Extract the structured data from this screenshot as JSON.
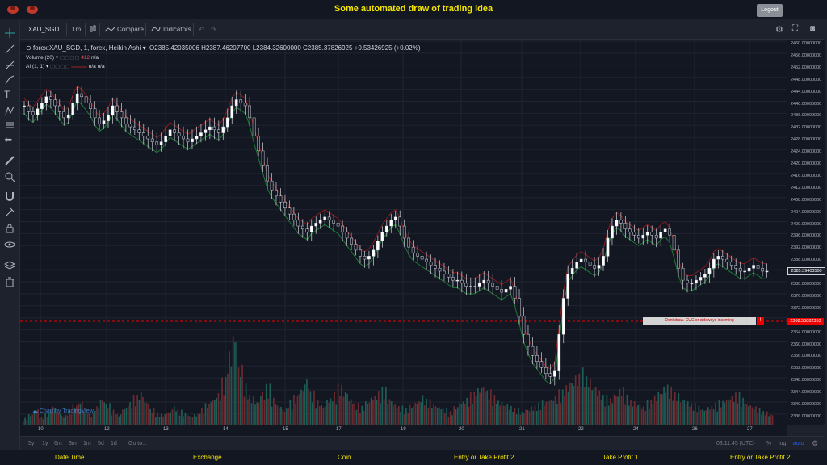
{
  "header": {
    "title": "Some automated draw of trading idea",
    "logout_label": "Logout"
  },
  "toolbar": {
    "symbol": "XAU_SGD",
    "interval": "1m",
    "compare_label": "Compare",
    "indicators_label": "Indicators",
    "undo_icon": "undo-icon",
    "settings_icon": "gear-icon",
    "fullscreen_icon": "fullscreen-icon",
    "snapshot_icon": "camera-icon"
  },
  "legend": {
    "title": "forex:XAU_SGD, 1, forex, Heikin Ashi",
    "open": "O2385.42035006",
    "high": "H2387.46207700",
    "low": "L2384.32600000",
    "close": "C2385.37826925",
    "change": "+0.53426925 (+0.02%)",
    "volume_label": "Volume (20)",
    "volume_value": "412",
    "volume_na": "n/a",
    "ai_label": "AI (1, 1)",
    "ai_na1": "n/a",
    "ai_na2": "n/a"
  },
  "price_axis": {
    "labels": [
      "2460.00000000",
      "2456.00000000",
      "2452.00000000",
      "2448.00000000",
      "2444.00000000",
      "2440.00000000",
      "2436.00000000",
      "2432.00000000",
      "2428.00000000",
      "2424.00000000",
      "2420.00000000",
      "2416.00000000",
      "2412.00000000",
      "2408.00000000",
      "2404.00000000",
      "2400.00000000",
      "2396.00000000",
      "2392.00000000",
      "2388.00000000",
      "2384.00000000",
      "2380.00000000",
      "2376.00000000",
      "2372.00000000",
      "2368.00000000",
      "2364.00000000",
      "2360.00000000",
      "2356.00000000",
      "2352.00000000",
      "2348.00000000",
      "2344.00000000",
      "2340.00000000",
      "2336.00000000"
    ],
    "current_price": "2385.39403500",
    "alert_price": "2368.55882353"
  },
  "time_axis": {
    "labels": [
      "10",
      "12",
      "13",
      "14",
      "15",
      "17",
      "19",
      "20",
      "21",
      "22",
      "24",
      "26",
      "27"
    ]
  },
  "alert": {
    "text": "Dont draw. CUC or sideways incoming",
    "button": "!"
  },
  "range_bar": {
    "ranges": [
      "5y",
      "1y",
      "6m",
      "3m",
      "1m",
      "5d",
      "1d"
    ],
    "goto": "Go to...",
    "clock": "03:11:45 (UTC)",
    "percent": "%",
    "log": "log",
    "auto": "auto"
  },
  "watermark": "Chart by TradingView",
  "footer": {
    "items": [
      "Date Time",
      "Exchange",
      "Coin",
      "Entry or Take Profit 2",
      "Take Profit 1",
      "Entry or Take Profit 2"
    ]
  },
  "colors": {
    "up": "#26a69a",
    "down": "#ef5350",
    "title": "#f5e600",
    "alert": "#e00000"
  },
  "chart_data": {
    "type": "candlestick",
    "series_note": "",
    "ylim": [
      2334,
      2462
    ],
    "x_ticks": [
      "10",
      "12",
      "13",
      "14",
      "15",
      "17",
      "19",
      "20",
      "21",
      "22",
      "24",
      "26",
      "27"
    ],
    "close_path": [
      2440,
      2438,
      2437,
      2439,
      2441,
      2443,
      2442,
      2440,
      2438,
      2436,
      2437,
      2441,
      2444,
      2443,
      2441,
      2439,
      2436,
      2434,
      2435,
      2437,
      2440,
      2438,
      2436,
      2434,
      2433,
      2432,
      2431,
      2430,
      2429,
      2428,
      2427,
      2428,
      2430,
      2432,
      2431,
      2430,
      2429,
      2428,
      2429,
      2430,
      2431,
      2432,
      2433,
      2432,
      2431,
      2433,
      2436,
      2440,
      2442,
      2441,
      2440,
      2436,
      2430,
      2425,
      2420,
      2415,
      2412,
      2410,
      2408,
      2406,
      2404,
      2402,
      2400,
      2399,
      2398,
      2400,
      2401,
      2402,
      2403,
      2402,
      2401,
      2400,
      2398,
      2396,
      2394,
      2392,
      2390,
      2389,
      2390,
      2392,
      2395,
      2398,
      2400,
      2402,
      2403,
      2400,
      2396,
      2393,
      2391,
      2390,
      2389,
      2388,
      2387,
      2386,
      2385,
      2384,
      2383,
      2382,
      2382,
      2381,
      2380,
      2380,
      2380,
      2381,
      2382,
      2381,
      2380,
      2379,
      2378,
      2379,
      2380,
      2376,
      2370,
      2364,
      2360,
      2357,
      2355,
      2353,
      2351,
      2350,
      2352,
      2364,
      2376,
      2384,
      2386,
      2388,
      2389,
      2388,
      2387,
      2386,
      2387,
      2390,
      2396,
      2400,
      2402,
      2401,
      2399,
      2398,
      2397,
      2396,
      2397,
      2398,
      2397,
      2396,
      2398,
      2399,
      2397,
      2392,
      2386,
      2382,
      2381,
      2381,
      2382,
      2383,
      2384,
      2386,
      2389,
      2390,
      2389,
      2388,
      2387,
      2386,
      2385,
      2385,
      2386,
      2387,
      2386,
      2385,
      2385
    ],
    "volume_path": [
      5,
      8,
      12,
      6,
      9,
      14,
      10,
      7,
      11,
      15,
      18,
      12,
      9,
      14,
      20,
      16,
      11,
      8,
      13,
      17,
      22,
      25,
      18,
      12,
      9,
      8,
      10,
      14,
      11,
      9,
      7,
      8,
      12,
      16,
      20,
      24,
      35,
      55,
      70,
      45,
      30,
      22,
      18,
      25,
      30,
      20,
      15,
      12,
      18,
      22,
      28,
      35,
      25,
      18,
      15,
      20,
      24,
      30,
      26,
      20,
      16,
      14,
      18,
      22,
      25,
      28,
      20,
      16,
      14,
      12,
      15,
      18,
      22,
      19,
      16,
      14,
      12,
      10,
      14,
      18,
      20,
      24,
      28,
      30,
      26,
      22,
      18,
      16,
      14,
      12,
      10,
      12,
      14,
      16,
      18,
      20,
      22,
      26,
      30,
      34,
      38,
      42,
      36,
      30,
      26,
      22,
      20,
      24,
      28,
      22,
      18,
      16,
      14,
      18,
      22,
      26,
      30,
      28,
      24,
      20,
      18,
      16,
      14,
      12,
      14,
      16,
      18,
      20,
      22,
      24,
      20,
      16,
      14,
      12,
      10,
      8
    ]
  }
}
